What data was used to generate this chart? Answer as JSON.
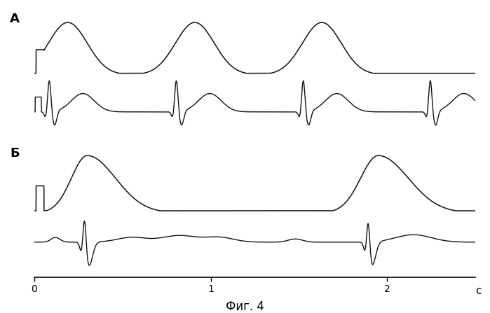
{
  "fig_label": "Фиг. 4",
  "label_A": "А",
  "label_B": "Б",
  "xlabel_end": "c",
  "xlim": [
    0,
    2.5
  ],
  "xticks": [
    0,
    1,
    2
  ],
  "background_color": "#ffffff",
  "line_color": "#111111"
}
